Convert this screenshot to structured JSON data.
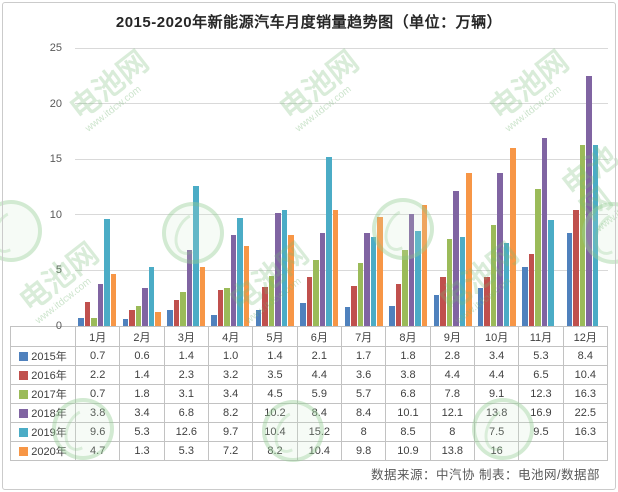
{
  "page": {
    "footer": "数据来源：中汽协  制表：电池网/数据部"
  },
  "watermark": {
    "brand": "电池网",
    "url": "www.itdcw.com"
  },
  "chart_data": {
    "type": "bar",
    "title": "2015-2020年新能源汽车月度销量趋势图（单位：万辆）",
    "categories": [
      "1月",
      "2月",
      "3月",
      "4月",
      "5月",
      "6月",
      "7月",
      "8月",
      "9月",
      "10月",
      "11月",
      "12月"
    ],
    "series": [
      {
        "name": "2015年",
        "color": "#4F81BD",
        "values": [
          "0.7",
          "0.6",
          "1.4",
          "1.0",
          "1.4",
          "2.1",
          "1.7",
          "1.8",
          "2.8",
          "3.4",
          "5.3",
          "8.4"
        ]
      },
      {
        "name": "2016年",
        "color": "#C0504D",
        "values": [
          "2.2",
          "1.4",
          "2.3",
          "3.2",
          "3.5",
          "4.4",
          "3.6",
          "3.8",
          "4.4",
          "4.4",
          "6.5",
          "10.4"
        ]
      },
      {
        "name": "2017年",
        "color": "#9BBB59",
        "values": [
          "0.7",
          "1.8",
          "3.1",
          "3.4",
          "4.5",
          "5.9",
          "5.7",
          "6.8",
          "7.8",
          "9.1",
          "12.3",
          "16.3"
        ]
      },
      {
        "name": "2018年",
        "color": "#8064A2",
        "values": [
          "3.8",
          "3.4",
          "6.8",
          "8.2",
          "10.2",
          "8.4",
          "8.4",
          "10.1",
          "12.1",
          "13.8",
          "16.9",
          "22.5"
        ]
      },
      {
        "name": "2019年",
        "color": "#4BACC6",
        "values": [
          "9.6",
          "5.3",
          "12.6",
          "9.7",
          "10.4",
          "15.2",
          "8",
          "8.5",
          "8",
          "7.5",
          "9.5",
          "16.3"
        ]
      },
      {
        "name": "2020年",
        "color": "#F79646",
        "values": [
          "4.7",
          "1.3",
          "5.3",
          "7.2",
          "8.2",
          "10.4",
          "9.8",
          "10.9",
          "13.8",
          "16",
          "",
          ""
        ]
      }
    ],
    "ylim": [
      0,
      25
    ],
    "yticks": [
      0,
      5,
      10,
      15,
      20,
      25
    ],
    "grid": true,
    "legend_position": "table-left-column",
    "xlabel": "",
    "ylabel": "",
    "source_note": "数据来源：中汽协  制表：电池网/数据部"
  }
}
